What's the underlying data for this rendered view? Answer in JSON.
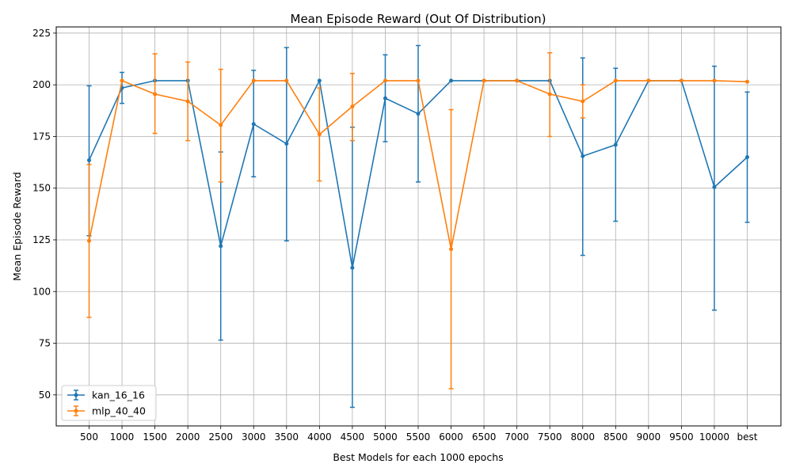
{
  "chart_data": {
    "type": "line",
    "title": "Mean Episode Reward (Out Of Distribution)",
    "xlabel": "Best Models for each 1000 epochs",
    "ylabel": "Mean Episode Reward",
    "categories": [
      "500",
      "1000",
      "1500",
      "2000",
      "2500",
      "3000",
      "3500",
      "4000",
      "4500",
      "5000",
      "5500",
      "6000",
      "6500",
      "7000",
      "7500",
      "8000",
      "8500",
      "9000",
      "9500",
      "10000",
      "best"
    ],
    "ylim": [
      35,
      228
    ],
    "yticks": [
      50,
      75,
      100,
      125,
      150,
      175,
      200,
      225
    ],
    "grid": true,
    "legend_position": "lower-left",
    "error_bars": true,
    "series": [
      {
        "name": "kan_16_16",
        "color": "#1f77b4",
        "values": [
          163.5,
          198.5,
          202,
          202,
          122,
          181,
          171.5,
          202,
          111.5,
          193.5,
          186,
          202,
          202,
          202,
          202,
          165.5,
          171,
          202,
          202,
          150.5,
          165
        ],
        "err_low": [
          127,
          191,
          202,
          202,
          76.5,
          155.5,
          124.5,
          202,
          44,
          172.5,
          153,
          202,
          202,
          202,
          202,
          117.5,
          134,
          202,
          202,
          91,
          133.5
        ],
        "err_high": [
          199.5,
          206,
          202,
          202,
          167.5,
          207,
          218,
          202,
          179.5,
          214.5,
          219,
          202,
          202,
          202,
          202,
          213,
          208,
          202,
          202,
          209,
          196.5
        ]
      },
      {
        "name": "mlp_40_40",
        "color": "#ff7f0e",
        "values": [
          124.5,
          202,
          195.5,
          192,
          180.5,
          202,
          202,
          176,
          189.5,
          202,
          202,
          120.5,
          202,
          202,
          195.5,
          192,
          202,
          202,
          202,
          202,
          201.5
        ],
        "err_low": [
          87.5,
          202,
          176.5,
          173,
          153,
          202,
          202,
          153.5,
          173,
          202,
          202,
          53,
          202,
          202,
          175,
          184,
          202,
          202,
          202,
          202,
          201.5
        ],
        "err_high": [
          161.5,
          202,
          215,
          211,
          207.5,
          202,
          202,
          198.5,
          205.5,
          202,
          202,
          188,
          202,
          202,
          215.5,
          200,
          202,
          202,
          202,
          202,
          201.5
        ]
      }
    ]
  }
}
